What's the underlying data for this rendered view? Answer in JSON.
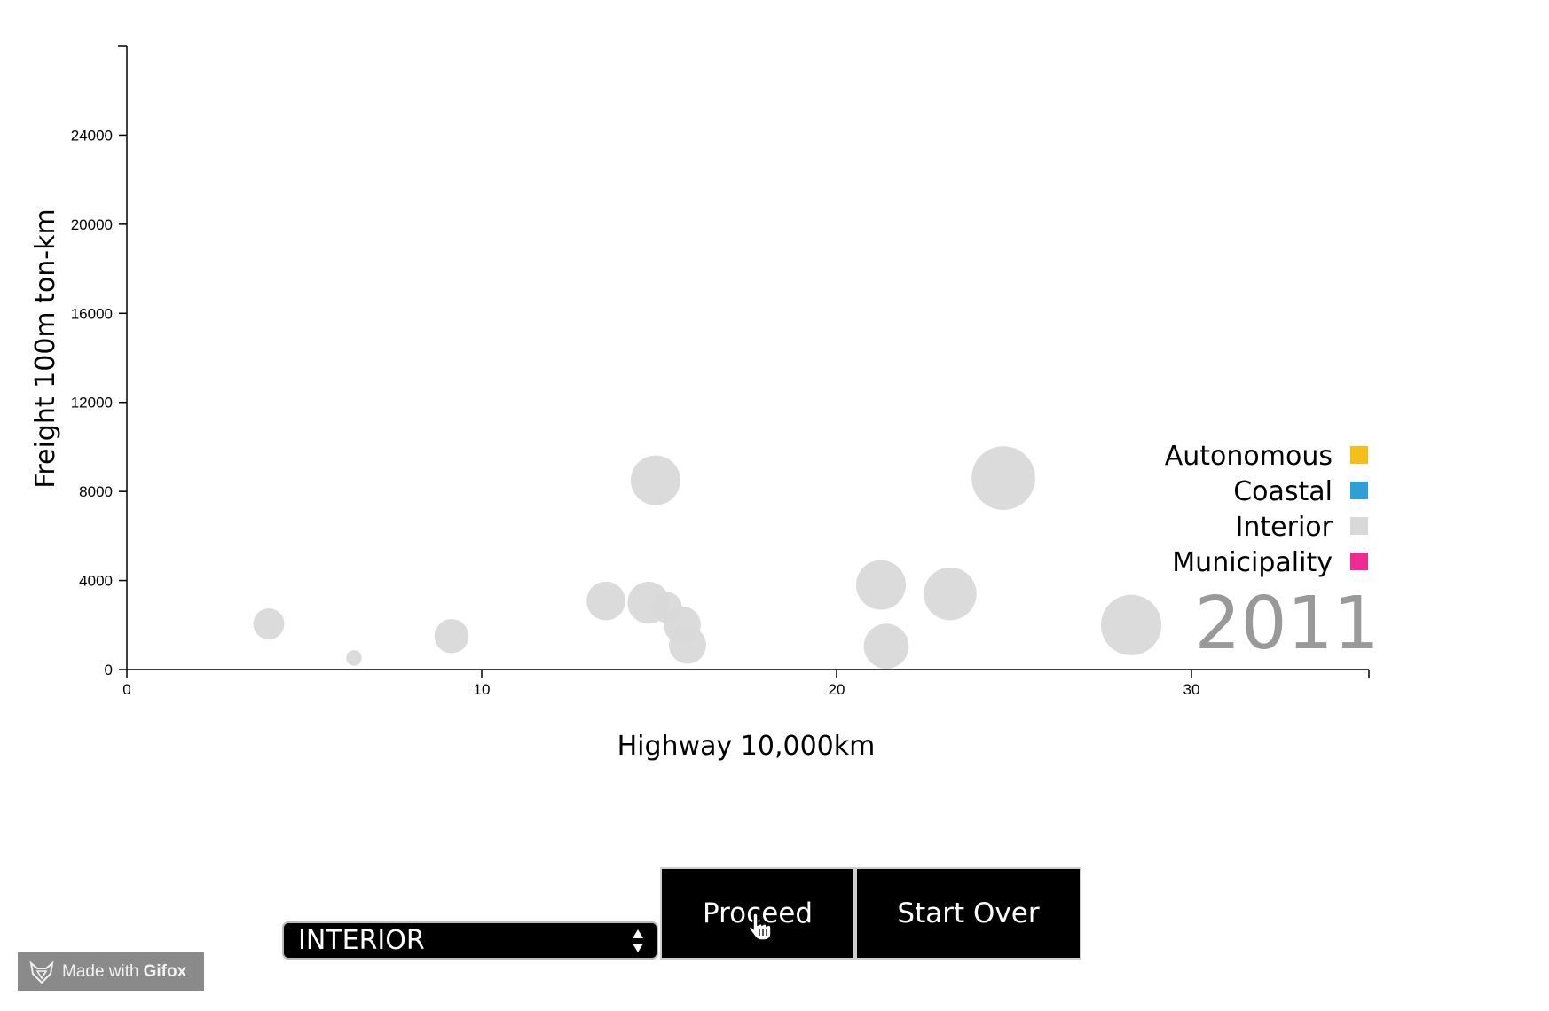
{
  "chart_data": {
    "type": "scatter",
    "xlabel": "Highway 10,000km",
    "ylabel": "Freight 100m ton-km",
    "xlim": [
      0,
      35
    ],
    "ylim": [
      0,
      28000
    ],
    "x_ticks": [
      0,
      10,
      20,
      30
    ],
    "y_ticks": [
      0,
      4000,
      8000,
      12000,
      16000,
      20000,
      24000
    ],
    "year": "2011",
    "legend_placement": "right",
    "legend": [
      {
        "name": "Autonomous",
        "color": "#f6be1a"
      },
      {
        "name": "Coastal",
        "color": "#2f9fd8"
      },
      {
        "name": "Interior",
        "color": "#d9d9d9"
      },
      {
        "name": "Municipality",
        "color": "#ee2b93"
      }
    ],
    "points": [
      {
        "x": 4.0,
        "y": 2050,
        "size": 1.0,
        "group": "Interior"
      },
      {
        "x": 6.4,
        "y": 520,
        "size": 0.5,
        "group": "Interior"
      },
      {
        "x": 9.15,
        "y": 1500,
        "size": 1.1,
        "group": "Interior"
      },
      {
        "x": 13.5,
        "y": 3080,
        "size": 1.25,
        "group": "Interior"
      },
      {
        "x": 14.7,
        "y": 3000,
        "size": 1.35,
        "group": "Interior"
      },
      {
        "x": 15.2,
        "y": 2800,
        "size": 1.0,
        "group": "Interior"
      },
      {
        "x": 15.65,
        "y": 2000,
        "size": 1.2,
        "group": "Interior"
      },
      {
        "x": 15.8,
        "y": 1100,
        "size": 1.2,
        "group": "Interior"
      },
      {
        "x": 14.9,
        "y": 8500,
        "size": 1.6,
        "group": "Interior"
      },
      {
        "x": 21.25,
        "y": 3800,
        "size": 1.6,
        "group": "Interior"
      },
      {
        "x": 21.4,
        "y": 1050,
        "size": 1.45,
        "group": "Interior"
      },
      {
        "x": 23.2,
        "y": 3400,
        "size": 1.7,
        "group": "Interior"
      },
      {
        "x": 24.7,
        "y": 8600,
        "size": 2.05,
        "group": "Interior"
      },
      {
        "x": 28.3,
        "y": 2000,
        "size": 1.95,
        "group": "Interior"
      }
    ]
  },
  "controls": {
    "region_select_value": "INTERIOR",
    "proceed_label": "Proceed",
    "start_over_label": "Start Over"
  },
  "watermark": {
    "prefix": "Made with",
    "brand": "Gifox"
  }
}
